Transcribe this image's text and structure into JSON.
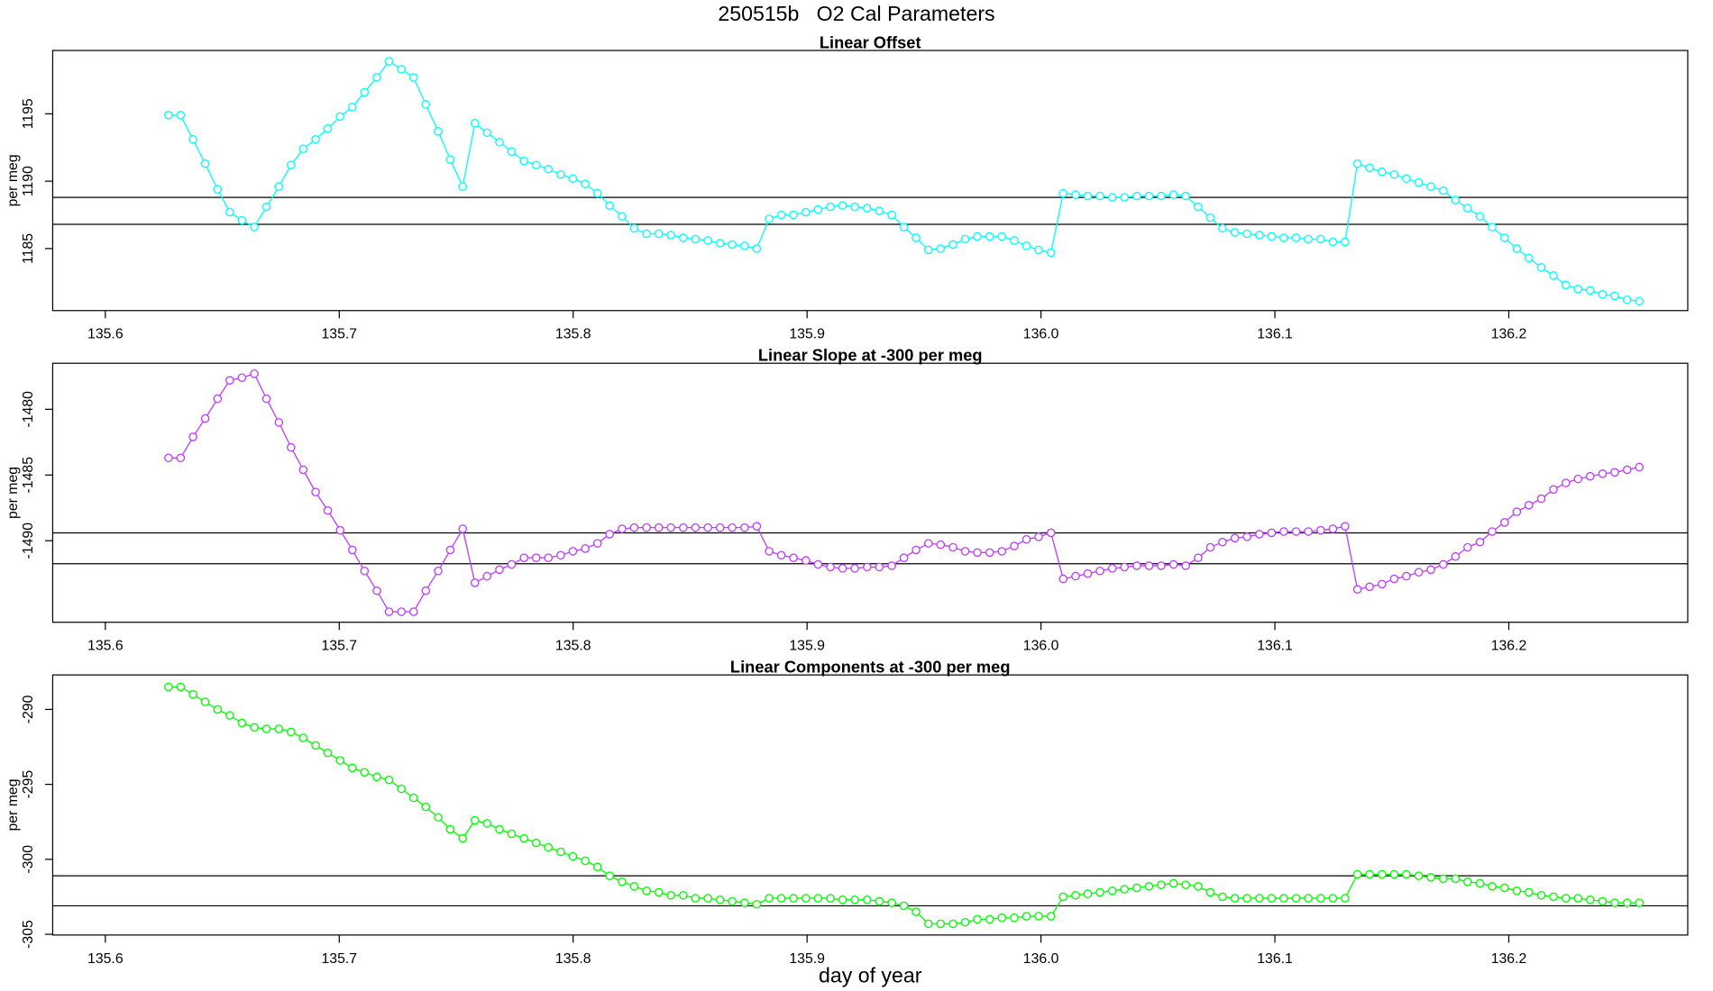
{
  "title": "250515b   O2 Cal Parameters",
  "chart_data": [
    {
      "type": "line",
      "title": "Linear Offset",
      "ylabel": "per meg",
      "color": "#00ffff",
      "xlim": [
        135.5775,
        136.2765
      ],
      "ylim": [
        1180.4,
        1199.7
      ],
      "xticks": [
        135.6,
        135.7,
        135.8,
        135.9,
        {
          "value": 136,
          "label": "136.0"
        },
        136.1,
        136.2
      ],
      "yticks": [
        1185,
        1190,
        1195
      ],
      "hlines": [
        1188.8,
        1186.8
      ],
      "x": [
        135.627,
        135.6322,
        135.6375,
        135.6427,
        135.648,
        135.6532,
        135.6584,
        135.6637,
        135.6689,
        135.6742,
        135.6794,
        135.6846,
        135.6899,
        135.6951,
        135.7004,
        135.7056,
        135.7108,
        135.7161,
        135.7213,
        135.7266,
        135.7318,
        135.737,
        135.7423,
        135.7475,
        135.7528,
        135.758,
        135.7632,
        135.7685,
        135.7737,
        135.779,
        135.7842,
        135.7894,
        135.7947,
        135.7999,
        135.8052,
        135.8104,
        135.8156,
        135.8209,
        135.8261,
        135.8314,
        135.8366,
        135.8418,
        135.8471,
        135.8523,
        135.8576,
        135.8628,
        135.868,
        135.8733,
        135.8785,
        135.8838,
        135.889,
        135.8942,
        135.8995,
        135.9047,
        135.91,
        135.9152,
        135.9204,
        135.9257,
        135.9309,
        135.9362,
        135.9414,
        135.9466,
        135.9519,
        135.9571,
        135.9624,
        135.9676,
        135.9728,
        135.9781,
        135.9833,
        135.9886,
        135.9938,
        135.999,
        136.0043,
        136.0095,
        136.0148,
        136.02,
        136.0252,
        136.0305,
        136.0357,
        136.041,
        136.0462,
        136.0514,
        136.0567,
        136.0619,
        136.0672,
        136.0724,
        136.0776,
        136.0829,
        136.0881,
        136.0934,
        136.0986,
        136.1038,
        136.1091,
        136.1143,
        136.1196,
        136.1248,
        136.13,
        136.1353,
        136.1405,
        136.1458,
        136.151,
        136.1562,
        136.1615,
        136.1667,
        136.172,
        136.1772,
        136.1824,
        136.1877,
        136.1929,
        136.1982,
        136.2034,
        136.2086,
        136.2139,
        136.2191,
        136.2244,
        136.2296,
        136.2348,
        136.2401,
        136.2453,
        136.2506,
        136.2558
      ],
      "values": [
        1194.9,
        1194.9,
        1193.1,
        1191.3,
        1189.4,
        1187.7,
        1187.1,
        1186.6,
        1188.1,
        1189.6,
        1191.2,
        1192.4,
        1193.1,
        1193.9,
        1194.8,
        1195.5,
        1196.6,
        1197.7,
        1198.9,
        1198.3,
        1197.7,
        1195.7,
        1193.7,
        1191.6,
        1189.6,
        1194.3,
        1193.6,
        1192.9,
        1192.2,
        1191.5,
        1191.2,
        1190.9,
        1190.5,
        1190.2,
        1189.8,
        1189.1,
        1188.2,
        1187.4,
        1186.5,
        1186.1,
        1186.1,
        1186.0,
        1185.8,
        1185.7,
        1185.6,
        1185.4,
        1185.3,
        1185.2,
        1185.0,
        1187.2,
        1187.5,
        1187.5,
        1187.7,
        1187.9,
        1188.1,
        1188.2,
        1188.1,
        1188.0,
        1187.8,
        1187.5,
        1186.6,
        1185.8,
        1184.9,
        1185.0,
        1185.3,
        1185.7,
        1185.9,
        1185.9,
        1185.9,
        1185.6,
        1185.2,
        1184.9,
        1184.7,
        1189.1,
        1189.0,
        1188.9,
        1188.9,
        1188.8,
        1188.8,
        1188.9,
        1188.9,
        1188.9,
        1189.0,
        1188.9,
        1188.1,
        1187.3,
        1186.5,
        1186.2,
        1186.1,
        1186.0,
        1185.9,
        1185.8,
        1185.8,
        1185.7,
        1185.7,
        1185.5,
        1185.5,
        1191.3,
        1191.0,
        1190.7,
        1190.5,
        1190.2,
        1189.9,
        1189.6,
        1189.3,
        1188.6,
        1188.0,
        1187.4,
        1186.6,
        1185.8,
        1185.0,
        1184.3,
        1183.6,
        1183.0,
        1182.3,
        1182.0,
        1181.9,
        1181.6,
        1181.5,
        1181.2,
        1181.1
      ]
    },
    {
      "type": "line",
      "title": "Linear Slope at -300 per meg",
      "ylabel": "per meg",
      "color": "#bf3eff",
      "xlim": [
        135.5775,
        136.2765
      ],
      "ylim": [
        -1496.2,
        -1476.5
      ],
      "xticks": [
        135.6,
        135.7,
        135.8,
        135.9,
        {
          "value": 136,
          "label": "136.0"
        },
        136.1,
        136.2
      ],
      "yticks": [
        -1490,
        -1485,
        -1480
      ],
      "hlines": [
        -1489.4,
        -1491.75
      ],
      "x": [
        135.627,
        135.6322,
        135.6375,
        135.6427,
        135.648,
        135.6532,
        135.6584,
        135.6637,
        135.6689,
        135.6742,
        135.6794,
        135.6846,
        135.6899,
        135.6951,
        135.7004,
        135.7056,
        135.7108,
        135.7161,
        135.7213,
        135.7266,
        135.7318,
        135.737,
        135.7423,
        135.7475,
        135.7528,
        135.758,
        135.7632,
        135.7685,
        135.7737,
        135.779,
        135.7842,
        135.7894,
        135.7947,
        135.7999,
        135.8052,
        135.8104,
        135.8156,
        135.8209,
        135.8261,
        135.8314,
        135.8366,
        135.8418,
        135.8471,
        135.8523,
        135.8576,
        135.8628,
        135.868,
        135.8733,
        135.8785,
        135.8838,
        135.889,
        135.8942,
        135.8995,
        135.9047,
        135.91,
        135.9152,
        135.9204,
        135.9257,
        135.9309,
        135.9362,
        135.9414,
        135.9466,
        135.9519,
        135.9571,
        135.9624,
        135.9676,
        135.9728,
        135.9781,
        135.9833,
        135.9886,
        135.9938,
        135.999,
        136.0043,
        136.0095,
        136.0148,
        136.02,
        136.0252,
        136.0305,
        136.0357,
        136.041,
        136.0462,
        136.0514,
        136.0567,
        136.0619,
        136.0672,
        136.0724,
        136.0776,
        136.0829,
        136.0881,
        136.0934,
        136.0986,
        136.1038,
        136.1091,
        136.1143,
        136.1196,
        136.1248,
        136.13,
        136.1353,
        136.1405,
        136.1458,
        136.151,
        136.1562,
        136.1615,
        136.1667,
        136.172,
        136.1772,
        136.1824,
        136.1877,
        136.1929,
        136.1982,
        136.2034,
        136.2086,
        136.2139,
        136.2191,
        136.2244,
        136.2296,
        136.2348,
        136.2401,
        136.2453,
        136.2506,
        136.2558
      ],
      "values": [
        -1483.7,
        -1483.7,
        -1482.1,
        -1480.7,
        -1479.2,
        -1477.8,
        -1477.6,
        -1477.3,
        -1479.2,
        -1481.0,
        -1482.9,
        -1484.6,
        -1486.3,
        -1487.7,
        -1489.2,
        -1490.7,
        -1492.3,
        -1493.8,
        -1495.4,
        -1495.4,
        -1495.4,
        -1493.8,
        -1492.3,
        -1490.7,
        -1489.1,
        -1493.2,
        -1492.7,
        -1492.2,
        -1491.8,
        -1491.3,
        -1491.3,
        -1491.3,
        -1491.1,
        -1490.8,
        -1490.6,
        -1490.2,
        -1489.5,
        -1489.1,
        -1489.0,
        -1489.0,
        -1489.0,
        -1489.0,
        -1489.0,
        -1489.0,
        -1489.0,
        -1489.0,
        -1489.0,
        -1489.0,
        -1488.9,
        -1490.8,
        -1491.1,
        -1491.3,
        -1491.5,
        -1491.8,
        -1492.0,
        -1492.1,
        -1492.1,
        -1492.0,
        -1492.0,
        -1491.9,
        -1491.3,
        -1490.7,
        -1490.2,
        -1490.3,
        -1490.5,
        -1490.8,
        -1490.9,
        -1490.9,
        -1490.8,
        -1490.4,
        -1489.9,
        -1489.7,
        -1489.4,
        -1492.9,
        -1492.7,
        -1492.5,
        -1492.3,
        -1492.1,
        -1492.0,
        -1491.9,
        -1491.9,
        -1491.9,
        -1491.8,
        -1491.9,
        -1491.3,
        -1490.5,
        -1490.1,
        -1489.8,
        -1489.7,
        -1489.5,
        -1489.4,
        -1489.3,
        -1489.3,
        -1489.3,
        -1489.2,
        -1489.1,
        -1488.9,
        -1493.7,
        -1493.5,
        -1493.3,
        -1492.9,
        -1492.7,
        -1492.4,
        -1492.2,
        -1491.8,
        -1491.2,
        -1490.5,
        -1490.1,
        -1489.3,
        -1488.6,
        -1487.8,
        -1487.3,
        -1486.8,
        -1486.1,
        -1485.6,
        -1485.3,
        -1485.1,
        -1484.9,
        -1484.8,
        -1484.6,
        -1484.4
      ]
    },
    {
      "type": "line",
      "title": "Linear Components at -300 per meg",
      "ylabel": "per meg",
      "xlabel": "day of year",
      "color": "#00ff00",
      "xlim": [
        135.5775,
        136.2765
      ],
      "ylim": [
        -305.05,
        -287.7
      ],
      "xticks": [
        135.6,
        135.7,
        135.8,
        135.9,
        {
          "value": 136,
          "label": "136.0"
        },
        136.1,
        136.2
      ],
      "yticks": [
        -305,
        -300,
        -295,
        -290
      ],
      "hlines": [
        -301.1,
        -303.1
      ],
      "x": [
        135.627,
        135.6322,
        135.6375,
        135.6427,
        135.648,
        135.6532,
        135.6584,
        135.6637,
        135.6689,
        135.6742,
        135.6794,
        135.6846,
        135.6899,
        135.6951,
        135.7004,
        135.7056,
        135.7108,
        135.7161,
        135.7213,
        135.7266,
        135.7318,
        135.737,
        135.7423,
        135.7475,
        135.7528,
        135.758,
        135.7632,
        135.7685,
        135.7737,
        135.779,
        135.7842,
        135.7894,
        135.7947,
        135.7999,
        135.8052,
        135.8104,
        135.8156,
        135.8209,
        135.8261,
        135.8314,
        135.8366,
        135.8418,
        135.8471,
        135.8523,
        135.8576,
        135.8628,
        135.868,
        135.8733,
        135.8785,
        135.8838,
        135.889,
        135.8942,
        135.8995,
        135.9047,
        135.91,
        135.9152,
        135.9204,
        135.9257,
        135.9309,
        135.9362,
        135.9414,
        135.9466,
        135.9519,
        135.9571,
        135.9624,
        135.9676,
        135.9728,
        135.9781,
        135.9833,
        135.9886,
        135.9938,
        135.999,
        136.0043,
        136.0095,
        136.0148,
        136.02,
        136.0252,
        136.0305,
        136.0357,
        136.041,
        136.0462,
        136.0514,
        136.0567,
        136.0619,
        136.0672,
        136.0724,
        136.0776,
        136.0829,
        136.0881,
        136.0934,
        136.0986,
        136.1038,
        136.1091,
        136.1143,
        136.1196,
        136.1248,
        136.13,
        136.1353,
        136.1405,
        136.1458,
        136.151,
        136.1562,
        136.1615,
        136.1667,
        136.172,
        136.1772,
        136.1824,
        136.1877,
        136.1929,
        136.1982,
        136.2034,
        136.2086,
        136.2139,
        136.2191,
        136.2244,
        136.2296,
        136.2348,
        136.2401,
        136.2453,
        136.2506,
        136.2558
      ],
      "values": [
        -288.5,
        -288.5,
        -289.0,
        -289.5,
        -290.0,
        -290.4,
        -290.9,
        -291.2,
        -291.3,
        -291.3,
        -291.5,
        -291.9,
        -292.4,
        -292.9,
        -293.4,
        -293.9,
        -294.2,
        -294.5,
        -294.7,
        -295.3,
        -295.9,
        -296.5,
        -297.2,
        -298.0,
        -298.6,
        -297.4,
        -297.6,
        -298.0,
        -298.3,
        -298.6,
        -298.9,
        -299.2,
        -299.5,
        -299.8,
        -300.1,
        -300.5,
        -301.1,
        -301.5,
        -301.8,
        -302.1,
        -302.2,
        -302.4,
        -302.4,
        -302.6,
        -302.6,
        -302.7,
        -302.8,
        -302.9,
        -303.0,
        -302.6,
        -302.6,
        -302.6,
        -302.6,
        -302.6,
        -302.6,
        -302.7,
        -302.7,
        -302.7,
        -302.8,
        -302.9,
        -303.1,
        -303.5,
        -304.3,
        -304.3,
        -304.3,
        -304.2,
        -304.0,
        -304.0,
        -303.9,
        -303.9,
        -303.8,
        -303.8,
        -303.8,
        -302.5,
        -302.4,
        -302.3,
        -302.2,
        -302.1,
        -302.0,
        -301.9,
        -301.8,
        -301.7,
        -301.6,
        -301.7,
        -301.8,
        -302.2,
        -302.5,
        -302.6,
        -302.6,
        -302.6,
        -302.6,
        -302.6,
        -302.6,
        -302.6,
        -302.6,
        -302.6,
        -302.6,
        -301.0,
        -301.0,
        -301.0,
        -301.0,
        -301.0,
        -301.1,
        -301.2,
        -301.3,
        -301.3,
        -301.5,
        -301.6,
        -301.8,
        -301.9,
        -302.1,
        -302.2,
        -302.4,
        -302.5,
        -302.6,
        -302.6,
        -302.7,
        -302.8,
        -302.9,
        -302.9,
        -302.9
      ]
    }
  ]
}
